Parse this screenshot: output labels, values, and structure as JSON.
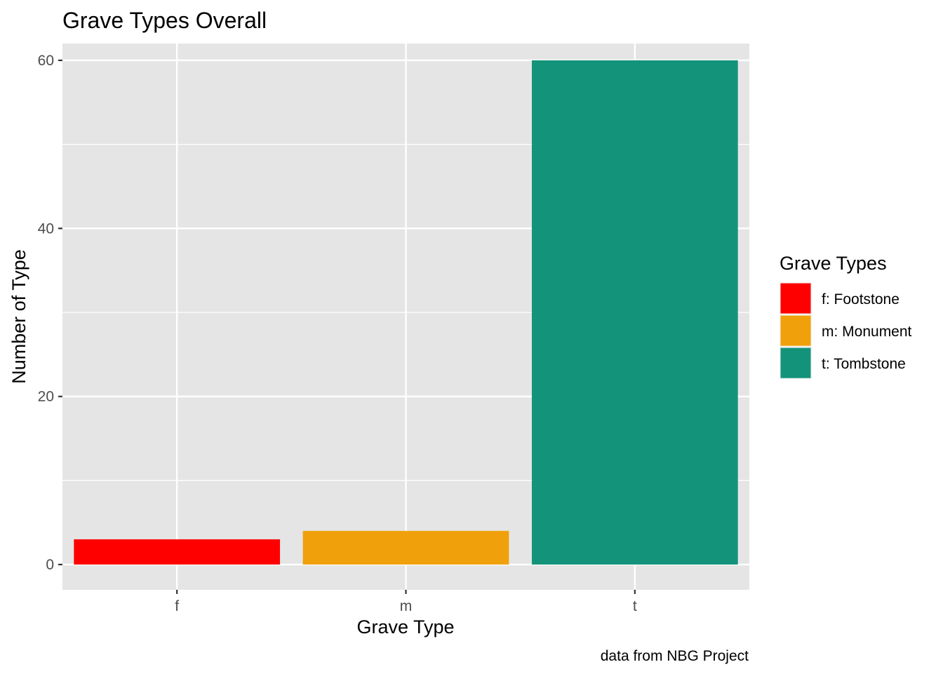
{
  "chart_data": {
    "type": "bar",
    "title": "Grave Types Overall",
    "xlabel": "Grave Type",
    "ylabel": "Number of Type",
    "caption": "data from NBG Project",
    "categories": [
      "f",
      "m",
      "t"
    ],
    "values": [
      3,
      4,
      60
    ],
    "colors": [
      "#FF0000",
      "#F0A00A",
      "#13937A"
    ],
    "ylim": [
      -3,
      62
    ],
    "yticks": [
      0,
      20,
      40,
      60
    ],
    "y_minor_ticks": [
      10,
      30,
      50
    ],
    "grid": true,
    "panel_background": "#E5E5E5",
    "legend": {
      "title": "Grave Types",
      "placement": "right",
      "entries": [
        {
          "label": "f: Footstone",
          "color": "#FF0000"
        },
        {
          "label": "m: Monument",
          "color": "#F0A00A"
        },
        {
          "label": "t: Tombstone",
          "color": "#13937A"
        }
      ]
    }
  }
}
